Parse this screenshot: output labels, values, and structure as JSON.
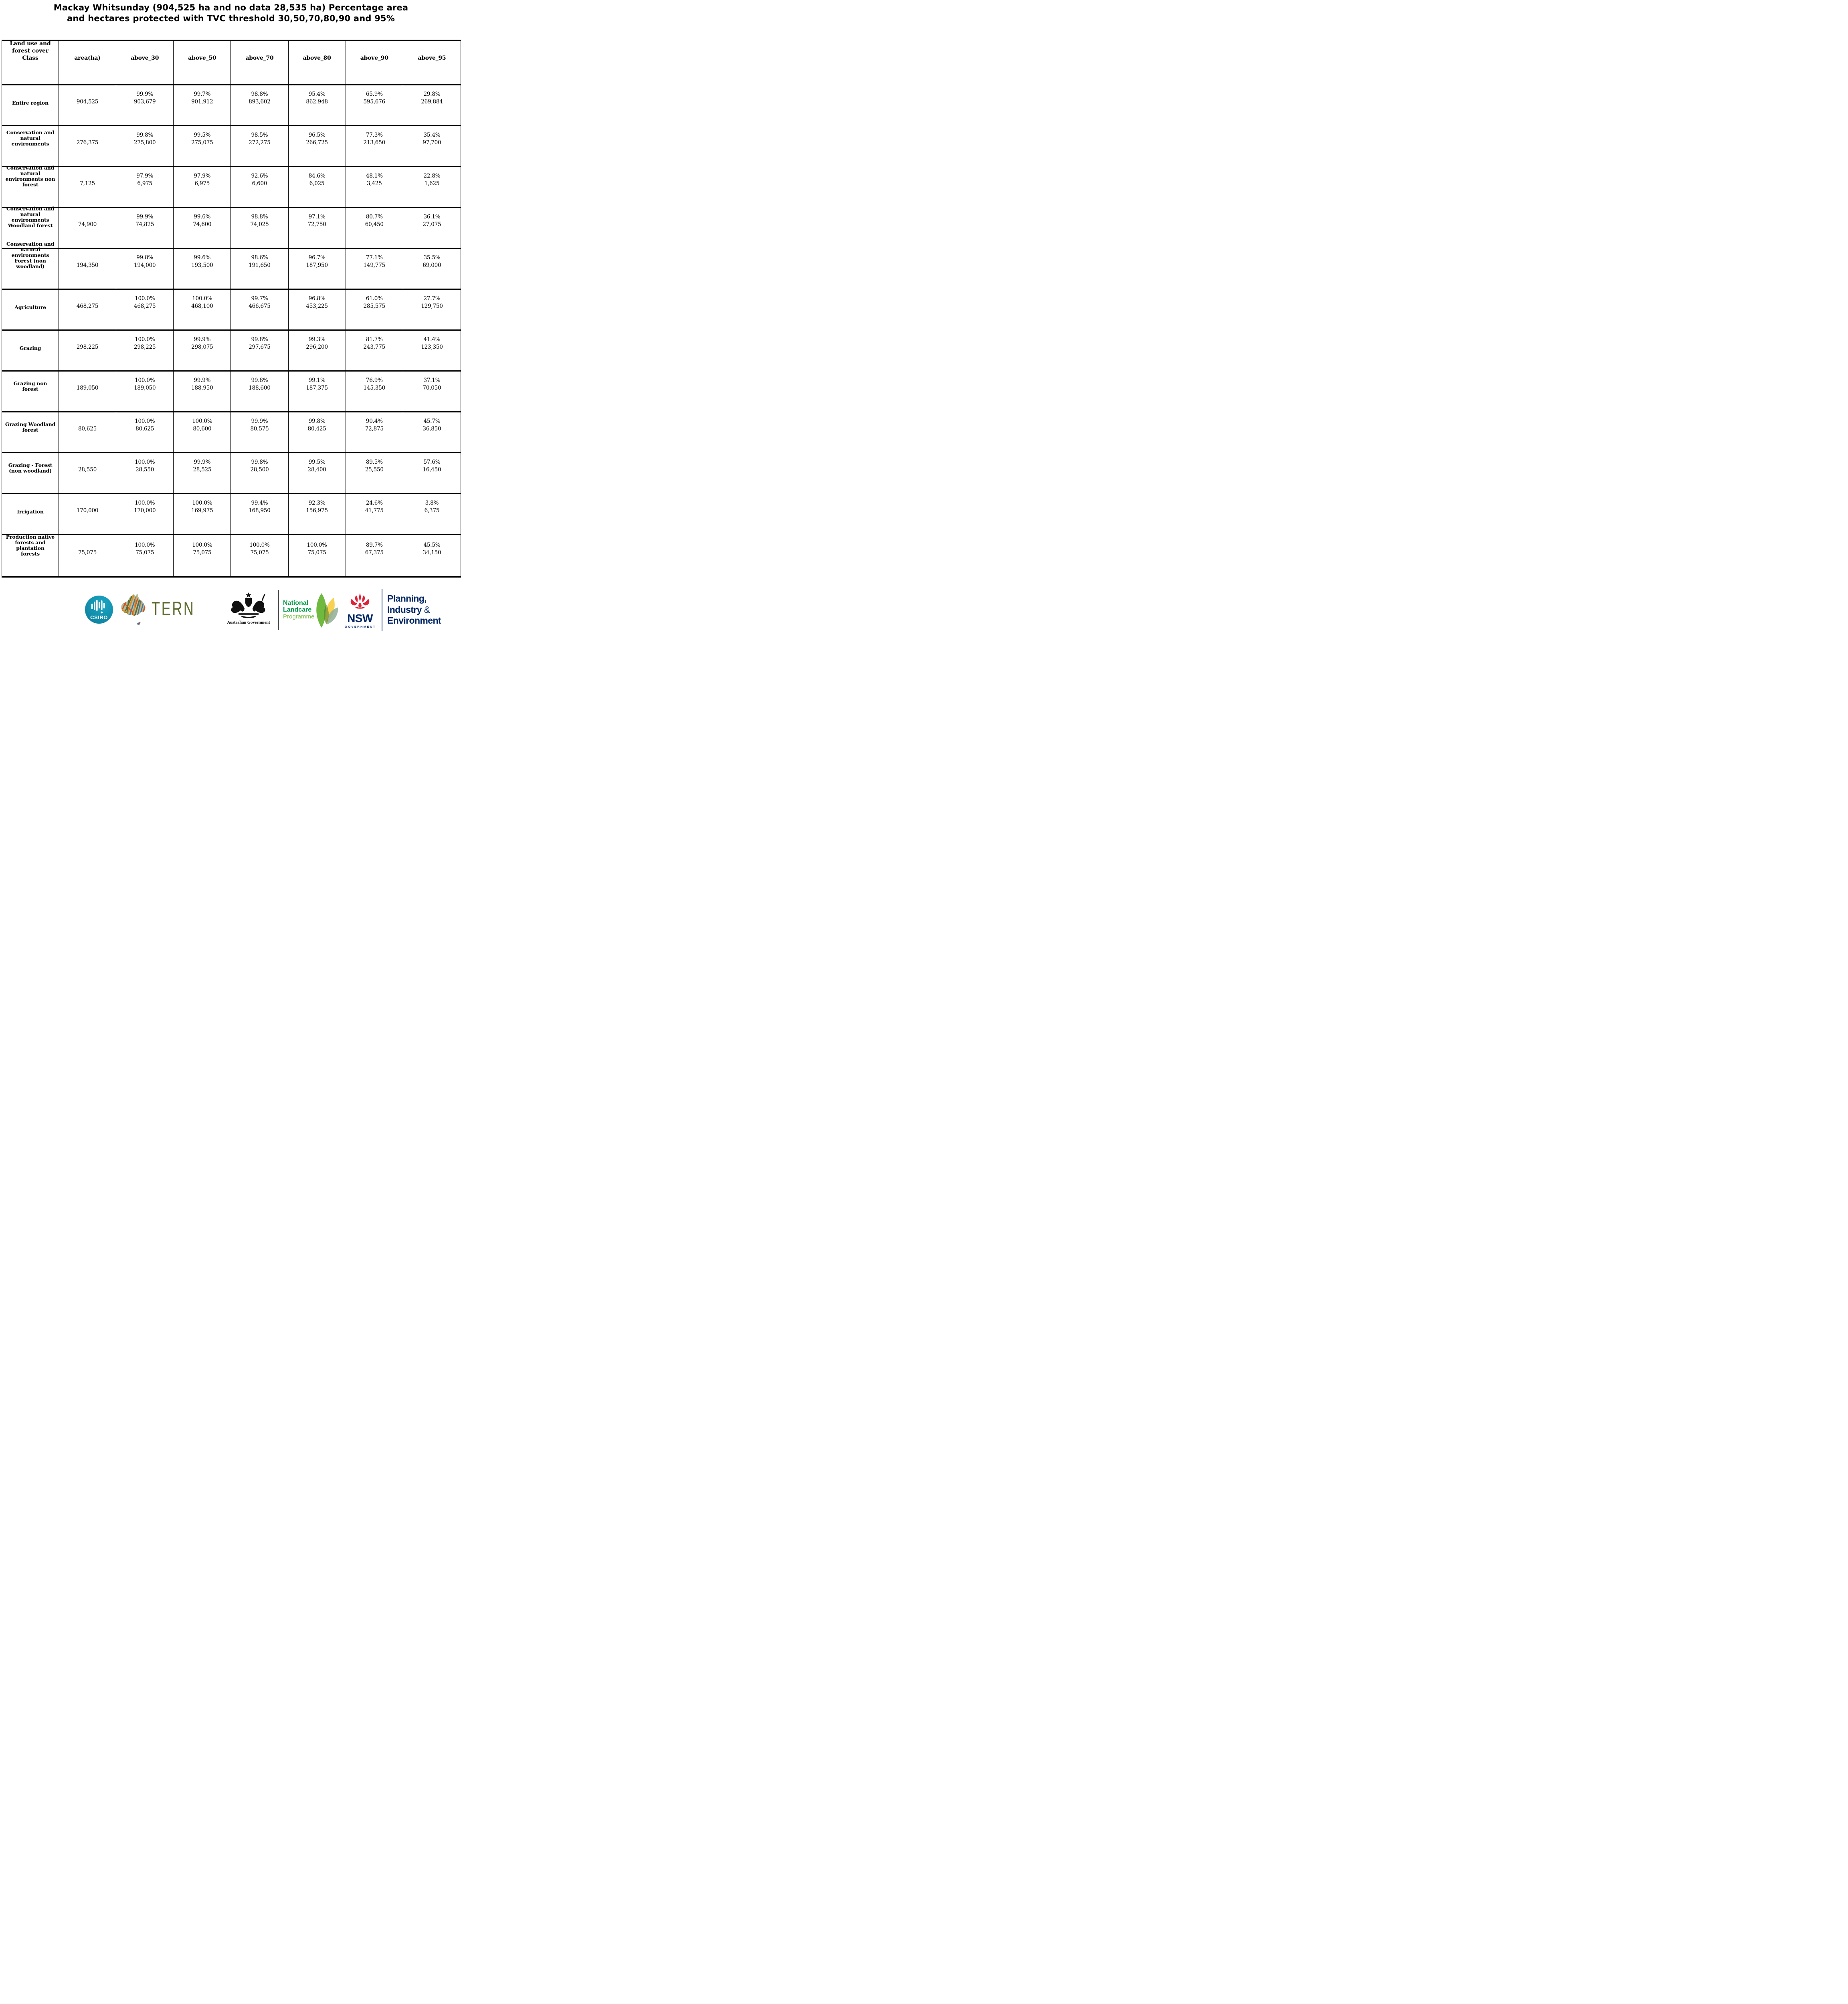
{
  "title": {
    "line1": "Mackay Whitsunday (904,525 ha and no data 28,535 ha) Percentage area",
    "line2": "and hectares protected with TVC threshold 30,50,70,80,90 and 95%"
  },
  "table": {
    "header_lines": [
      "Land use and",
      "forest cover",
      "Class"
    ],
    "columns": [
      "area(ha)",
      "above_30",
      "above_50",
      "above_70",
      "above_80",
      "above_90",
      "above_95"
    ],
    "rows": [
      {
        "label": [
          "Entire region"
        ],
        "area": "904,525",
        "cells": [
          {
            "pct": "99.9%",
            "ha": "903,679"
          },
          {
            "pct": "99.7%",
            "ha": "901,912"
          },
          {
            "pct": "98.8%",
            "ha": "893,602"
          },
          {
            "pct": "95.4%",
            "ha": "862,948"
          },
          {
            "pct": "65.9%",
            "ha": "595,676"
          },
          {
            "pct": "29.8%",
            "ha": "269,884"
          }
        ]
      },
      {
        "label": [
          "Conservation and",
          "natural",
          "environments"
        ],
        "area": "276,375",
        "cells": [
          {
            "pct": "99.8%",
            "ha": "275,800"
          },
          {
            "pct": "99.5%",
            "ha": "275,075"
          },
          {
            "pct": "98.5%",
            "ha": "272,275"
          },
          {
            "pct": "96.5%",
            "ha": "266,725"
          },
          {
            "pct": "77.3%",
            "ha": "213,650"
          },
          {
            "pct": "35.4%",
            "ha": "97,700"
          }
        ]
      },
      {
        "label": [
          "Conservation and",
          "natural",
          "environments non",
          "forest"
        ],
        "area": "7,125",
        "cells": [
          {
            "pct": "97.9%",
            "ha": "6,975"
          },
          {
            "pct": "97.9%",
            "ha": "6,975"
          },
          {
            "pct": "92.6%",
            "ha": "6,600"
          },
          {
            "pct": "84.6%",
            "ha": "6,025"
          },
          {
            "pct": "48.1%",
            "ha": "3,425"
          },
          {
            "pct": "22.8%",
            "ha": "1,625"
          }
        ]
      },
      {
        "label": [
          "Conservation and",
          "natural",
          "environments",
          "Woodland forest"
        ],
        "area": "74,900",
        "cells": [
          {
            "pct": "99.9%",
            "ha": "74,825"
          },
          {
            "pct": "99.6%",
            "ha": "74,600"
          },
          {
            "pct": "98.8%",
            "ha": "74,025"
          },
          {
            "pct": "97.1%",
            "ha": "72,750"
          },
          {
            "pct": "80.7%",
            "ha": "60,450"
          },
          {
            "pct": "36.1%",
            "ha": "27,075"
          }
        ]
      },
      {
        "label": [
          "Conservation and",
          "natural",
          "environments",
          "Forest (non",
          "woodland)"
        ],
        "area": "194,350",
        "cells": [
          {
            "pct": "99.8%",
            "ha": "194,000"
          },
          {
            "pct": "99.6%",
            "ha": "193,500"
          },
          {
            "pct": "98.6%",
            "ha": "191,650"
          },
          {
            "pct": "96.7%",
            "ha": "187,950"
          },
          {
            "pct": "77.1%",
            "ha": "149,775"
          },
          {
            "pct": "35.5%",
            "ha": "69,000"
          }
        ]
      },
      {
        "label": [
          "Agriculture"
        ],
        "area": "468,275",
        "cells": [
          {
            "pct": "100.0%",
            "ha": "468,275"
          },
          {
            "pct": "100.0%",
            "ha": "468,100"
          },
          {
            "pct": "99.7%",
            "ha": "466,675"
          },
          {
            "pct": "96.8%",
            "ha": "453,225"
          },
          {
            "pct": "61.0%",
            "ha": "285,575"
          },
          {
            "pct": "27.7%",
            "ha": "129,750"
          }
        ]
      },
      {
        "label": [
          "Grazing"
        ],
        "area": "298,225",
        "cells": [
          {
            "pct": "100.0%",
            "ha": "298,225"
          },
          {
            "pct": "99.9%",
            "ha": "298,075"
          },
          {
            "pct": "99.8%",
            "ha": "297,675"
          },
          {
            "pct": "99.3%",
            "ha": "296,200"
          },
          {
            "pct": "81.7%",
            "ha": "243,775"
          },
          {
            "pct": "41.4%",
            "ha": "123,350"
          }
        ]
      },
      {
        "label": [
          "Grazing non",
          "forest"
        ],
        "area": "189,050",
        "cells": [
          {
            "pct": "100.0%",
            "ha": "189,050"
          },
          {
            "pct": "99.9%",
            "ha": "188,950"
          },
          {
            "pct": "99.8%",
            "ha": "188,600"
          },
          {
            "pct": "99.1%",
            "ha": "187,375"
          },
          {
            "pct": "76.9%",
            "ha": "145,350"
          },
          {
            "pct": "37.1%",
            "ha": "70,050"
          }
        ]
      },
      {
        "label": [
          "Grazing Woodland",
          "forest"
        ],
        "area": "80,625",
        "cells": [
          {
            "pct": "100.0%",
            "ha": "80,625"
          },
          {
            "pct": "100.0%",
            "ha": "80,600"
          },
          {
            "pct": "99.9%",
            "ha": "80,575"
          },
          {
            "pct": "99.8%",
            "ha": "80,425"
          },
          {
            "pct": "90.4%",
            "ha": "72,875"
          },
          {
            "pct": "45.7%",
            "ha": "36,850"
          }
        ]
      },
      {
        "label": [
          "Grazing - Forest",
          "(non woodland)"
        ],
        "area": "28,550",
        "cells": [
          {
            "pct": "100.0%",
            "ha": "28,550"
          },
          {
            "pct": "99.9%",
            "ha": "28,525"
          },
          {
            "pct": "99.8%",
            "ha": "28,500"
          },
          {
            "pct": "99.5%",
            "ha": "28,400"
          },
          {
            "pct": "89.5%",
            "ha": "25,550"
          },
          {
            "pct": "57.6%",
            "ha": "16,450"
          }
        ]
      },
      {
        "label": [
          "Irrigation"
        ],
        "area": "170,000",
        "cells": [
          {
            "pct": "100.0%",
            "ha": "170,000"
          },
          {
            "pct": "100.0%",
            "ha": "169,975"
          },
          {
            "pct": "99.4%",
            "ha": "168,950"
          },
          {
            "pct": "92.3%",
            "ha": "156,975"
          },
          {
            "pct": "24.6%",
            "ha": "41,775"
          },
          {
            "pct": "3.8%",
            "ha": "6,375"
          }
        ]
      },
      {
        "label": [
          "Production native",
          "forests and",
          "plantation",
          "forests"
        ],
        "area": "75,075",
        "cells": [
          {
            "pct": "100.0%",
            "ha": "75,075"
          },
          {
            "pct": "100.0%",
            "ha": "75,075"
          },
          {
            "pct": "100.0%",
            "ha": "75,075"
          },
          {
            "pct": "100.0%",
            "ha": "75,075"
          },
          {
            "pct": "89.7%",
            "ha": "67,375"
          },
          {
            "pct": "45.5%",
            "ha": "34,150"
          }
        ]
      }
    ]
  },
  "footer": {
    "csiro": {
      "label": "CSIRO"
    },
    "tern": {
      "label": "TERN"
    },
    "ausgov": {
      "label": "Australian Government"
    },
    "landcare": {
      "line1": "National",
      "line2": "Landcare",
      "line3": "Programme"
    },
    "nsw": {
      "label": "NSW",
      "sub": "GOVERNMENT"
    },
    "planning": {
      "line1": "Planning,",
      "line2": "Industry ",
      "amp": "&",
      "line3": "Environment"
    }
  },
  "colors": {
    "csiro_teal": "#128fad",
    "tern_olive": "#5d6b2e",
    "map_sage": "#b2bfa1",
    "stripe_orange": "#d4541f",
    "stripe_amber": "#d98f25",
    "stripe_blue": "#45719f",
    "stripe_olive": "#5f6b33",
    "landcare_green": "#009a44",
    "landcare_light_green": "#7cc14b",
    "leaf_green": "#62b32e",
    "leaf_yellow": "#f5c623",
    "nsw_red": "#dd2239",
    "navy": "#002664",
    "table_line": "#000000"
  }
}
